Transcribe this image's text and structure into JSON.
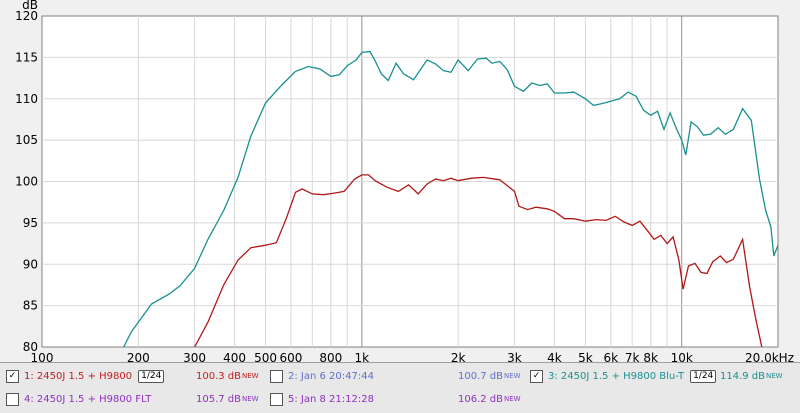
{
  "chart_data": {
    "type": "line",
    "ylabel": "dB",
    "ylim": [
      80,
      120
    ],
    "xlim": [
      100,
      20000
    ],
    "xscale": "log",
    "grid": true,
    "y_ticks": [
      "80",
      "85",
      "90",
      "95",
      "100",
      "105",
      "110",
      "115",
      "120"
    ],
    "x_ticks": [
      {
        "v": 100,
        "label": "100"
      },
      {
        "v": 200,
        "label": "200"
      },
      {
        "v": 300,
        "label": "300"
      },
      {
        "v": 400,
        "label": "400"
      },
      {
        "v": 500,
        "label": "500"
      },
      {
        "v": 600,
        "label": "600"
      },
      {
        "v": 800,
        "label": "800"
      },
      {
        "v": 1000,
        "label": "1k"
      },
      {
        "v": 2000,
        "label": "2k"
      },
      {
        "v": 3000,
        "label": "3k"
      },
      {
        "v": 4000,
        "label": "4k"
      },
      {
        "v": 5000,
        "label": "5k"
      },
      {
        "v": 6000,
        "label": "6k"
      },
      {
        "v": 7000,
        "label": "7k"
      },
      {
        "v": 8000,
        "label": "8k"
      },
      {
        "v": 10000,
        "label": "10k"
      },
      {
        "v": 20000,
        "label": "20.0kHz"
      }
    ],
    "series": [
      {
        "name": "3: 2450J 1.5 + H9800 Blu-T",
        "color": "#1a9090",
        "points": [
          [
            180,
            80
          ],
          [
            190,
            81.8
          ],
          [
            200,
            83
          ],
          [
            220,
            85.2
          ],
          [
            250,
            86.4
          ],
          [
            270,
            87.4
          ],
          [
            300,
            89.5
          ],
          [
            330,
            93
          ],
          [
            370,
            96.5
          ],
          [
            410,
            100.5
          ],
          [
            450,
            105.5
          ],
          [
            500,
            109.5
          ],
          [
            560,
            111.6
          ],
          [
            620,
            113.3
          ],
          [
            680,
            113.9
          ],
          [
            740,
            113.6
          ],
          [
            800,
            112.7
          ],
          [
            850,
            112.9
          ],
          [
            900,
            114
          ],
          [
            960,
            114.7
          ],
          [
            1000,
            115.6
          ],
          [
            1060,
            115.7
          ],
          [
            1100,
            114.6
          ],
          [
            1150,
            113
          ],
          [
            1210,
            112.2
          ],
          [
            1280,
            114.3
          ],
          [
            1350,
            113
          ],
          [
            1450,
            112.3
          ],
          [
            1600,
            114.7
          ],
          [
            1700,
            114.2
          ],
          [
            1800,
            113.4
          ],
          [
            1900,
            113.2
          ],
          [
            2000,
            114.7
          ],
          [
            2150,
            113.4
          ],
          [
            2300,
            114.8
          ],
          [
            2450,
            114.9
          ],
          [
            2550,
            114.3
          ],
          [
            2700,
            114.5
          ],
          [
            2850,
            113.5
          ],
          [
            3000,
            111.5
          ],
          [
            3200,
            110.9
          ],
          [
            3400,
            111.9
          ],
          [
            3600,
            111.6
          ],
          [
            3800,
            111.8
          ],
          [
            4000,
            110.7
          ],
          [
            4300,
            110.7
          ],
          [
            4600,
            110.8
          ],
          [
            5000,
            110
          ],
          [
            5300,
            109.2
          ],
          [
            5600,
            109.4
          ],
          [
            6000,
            109.7
          ],
          [
            6400,
            110
          ],
          [
            6800,
            110.8
          ],
          [
            7200,
            110.3
          ],
          [
            7600,
            108.6
          ],
          [
            8000,
            108
          ],
          [
            8400,
            108.5
          ],
          [
            8800,
            106.3
          ],
          [
            9200,
            108.3
          ],
          [
            9600,
            106.5
          ],
          [
            10000,
            105
          ],
          [
            10300,
            103.2
          ],
          [
            10700,
            107.2
          ],
          [
            11200,
            106.6
          ],
          [
            11700,
            105.6
          ],
          [
            12300,
            105.7
          ],
          [
            13000,
            106.5
          ],
          [
            13700,
            105.7
          ],
          [
            14500,
            106.3
          ],
          [
            15500,
            108.8
          ],
          [
            16500,
            107.4
          ],
          [
            17500,
            100.3
          ],
          [
            18300,
            96.5
          ],
          [
            19000,
            94.5
          ],
          [
            19400,
            91
          ],
          [
            20000,
            92.3
          ]
        ]
      },
      {
        "name": "1: 2450J 1.5 + H9800",
        "color": "#b01818",
        "points": [
          [
            300,
            80
          ],
          [
            330,
            83
          ],
          [
            370,
            87.5
          ],
          [
            410,
            90.5
          ],
          [
            450,
            92
          ],
          [
            500,
            92.3
          ],
          [
            540,
            92.6
          ],
          [
            580,
            95.5
          ],
          [
            620,
            98.7
          ],
          [
            650,
            99.1
          ],
          [
            700,
            98.5
          ],
          [
            760,
            98.4
          ],
          [
            820,
            98.6
          ],
          [
            880,
            98.8
          ],
          [
            950,
            100.3
          ],
          [
            1000,
            100.8
          ],
          [
            1050,
            100.8
          ],
          [
            1100,
            100.1
          ],
          [
            1200,
            99.3
          ],
          [
            1300,
            98.8
          ],
          [
            1400,
            99.6
          ],
          [
            1500,
            98.5
          ],
          [
            1600,
            99.7
          ],
          [
            1700,
            100.3
          ],
          [
            1800,
            100.1
          ],
          [
            1900,
            100.4
          ],
          [
            2000,
            100.1
          ],
          [
            2200,
            100.4
          ],
          [
            2400,
            100.5
          ],
          [
            2700,
            100.2
          ],
          [
            3000,
            98.8
          ],
          [
            3100,
            97
          ],
          [
            3300,
            96.6
          ],
          [
            3500,
            96.9
          ],
          [
            3800,
            96.7
          ],
          [
            4000,
            96.4
          ],
          [
            4300,
            95.5
          ],
          [
            4600,
            95.5
          ],
          [
            5000,
            95.2
          ],
          [
            5400,
            95.4
          ],
          [
            5800,
            95.3
          ],
          [
            6200,
            95.8
          ],
          [
            6600,
            95.1
          ],
          [
            7000,
            94.7
          ],
          [
            7400,
            95.2
          ],
          [
            7800,
            94.1
          ],
          [
            8200,
            93
          ],
          [
            8600,
            93.5
          ],
          [
            9000,
            92.5
          ],
          [
            9400,
            93.3
          ],
          [
            9800,
            90.5
          ],
          [
            10100,
            87
          ],
          [
            10500,
            89.8
          ],
          [
            11000,
            90.1
          ],
          [
            11500,
            89
          ],
          [
            12000,
            88.9
          ],
          [
            12500,
            90.3
          ],
          [
            13200,
            91
          ],
          [
            13800,
            90.2
          ],
          [
            14500,
            90.6
          ],
          [
            15500,
            93
          ],
          [
            16300,
            87.3
          ],
          [
            17000,
            83.6
          ],
          [
            17800,
            80
          ]
        ]
      }
    ]
  },
  "legend": {
    "row1": {
      "item1_label": "1: 2450J 1.5 + H9800",
      "item1_smooth": "1/24",
      "item1_value": "100.3 dB",
      "item2_label": "2: Jan 6 20:47:44",
      "item2_value": "100.7 dB",
      "item3_label": "3: 2450J 1.5 + H9800 Blu-T",
      "item3_smooth": "1/24",
      "item3_value": "114.9 dB",
      "new_tag": "NEW"
    },
    "row2": {
      "item4_label": "4: 2450J 1.5 + H9800 FLT",
      "item4_value": "105.7 dB",
      "item5_label": "5: Jan 8 21:12:28",
      "item5_value": "106.2 dB",
      "new_tag": "NEW"
    },
    "colors": {
      "item1": "#c02020",
      "item2": "#6070c8",
      "item3": "#1a9090",
      "item4": "#9030c0",
      "item5": "#9030c0"
    }
  }
}
